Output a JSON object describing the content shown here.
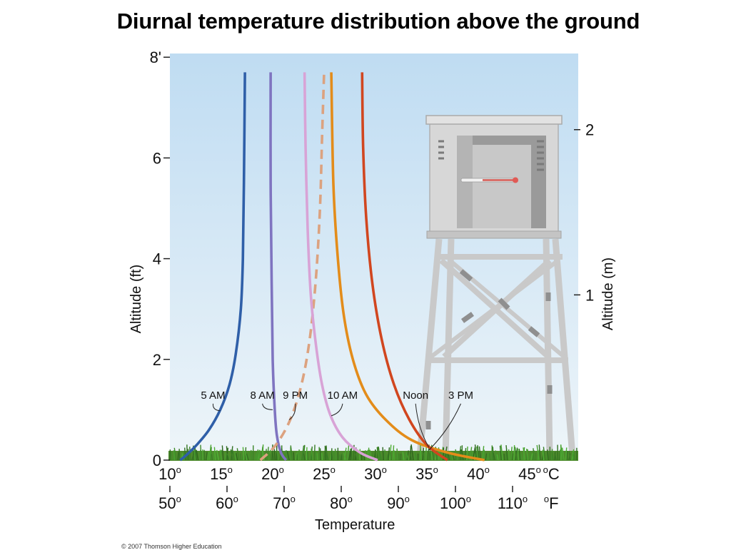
{
  "title": "Diurnal temperature distribution above the ground",
  "copyright": "© 2007 Thomson Higher Education",
  "colors": {
    "sky_top": "#bfdcf2",
    "sky_bottom": "#eef5f9",
    "grass": "#4e8a2c",
    "shelter": "#d2d2d2",
    "shelter_dark": "#8a8a8a"
  },
  "chart_data": {
    "type": "line",
    "title": "Diurnal temperature distribution above the ground",
    "xlabel": "Temperature",
    "ylabel_left": "Altitude (ft)",
    "ylabel_right": "Altitude (m)",
    "x_unit_c": "oC",
    "x_unit_f": "oF",
    "xlim_c": [
      10,
      48
    ],
    "ylim_ft": [
      0,
      8
    ],
    "celsius_ticks": [
      "10o",
      "15o",
      "20o",
      "25o",
      "30o",
      "35o",
      "40o",
      "45o"
    ],
    "celsius_tick_values": [
      10,
      15,
      20,
      25,
      30,
      35,
      40,
      45
    ],
    "fahrenheit_ticks": [
      "50o",
      "60o",
      "70o",
      "80o",
      "90o",
      "100o",
      "110o"
    ],
    "fahrenheit_tick_values": [
      50,
      60,
      70,
      80,
      90,
      100,
      110
    ],
    "left_ticks": [
      "0",
      "2",
      "4",
      "6",
      "8'"
    ],
    "left_tick_values": [
      0,
      2,
      4,
      6,
      8
    ],
    "right_ticks": [
      "1",
      "2"
    ],
    "right_tick_values_m": [
      1,
      2
    ],
    "grid": false,
    "series": [
      {
        "name": "5 AM",
        "color": "#2f5fa8",
        "dashed": false,
        "points": [
          [
            11.0,
            0
          ],
          [
            11.6,
            0.1
          ],
          [
            12.6,
            0.3
          ],
          [
            13.8,
            0.6
          ],
          [
            14.9,
            1.0
          ],
          [
            15.8,
            1.5
          ],
          [
            16.4,
            2.1
          ],
          [
            16.9,
            3.0
          ],
          [
            17.1,
            4.0
          ],
          [
            17.2,
            5.5
          ],
          [
            17.3,
            7.7
          ]
        ]
      },
      {
        "name": "8 AM",
        "color": "#7f74c0",
        "dashed": false,
        "points": [
          [
            21.3,
            0
          ],
          [
            20.8,
            0.15
          ],
          [
            20.4,
            0.5
          ],
          [
            20.2,
            1.0
          ],
          [
            20.0,
            2.0
          ],
          [
            19.9,
            3.5
          ],
          [
            19.8,
            5.5
          ],
          [
            19.8,
            7.7
          ]
        ]
      },
      {
        "name": "9 PM",
        "color": "#dca27f",
        "dashed": true,
        "points": [
          [
            18.8,
            0
          ],
          [
            20.3,
            0.3
          ],
          [
            21.7,
            0.8
          ],
          [
            22.8,
            1.5
          ],
          [
            23.6,
            2.4
          ],
          [
            24.2,
            3.6
          ],
          [
            24.6,
            5.0
          ],
          [
            24.8,
            6.4
          ],
          [
            25.0,
            7.7
          ]
        ]
      },
      {
        "name": "10 AM",
        "color": "#d8a3d6",
        "dashed": false,
        "points": [
          [
            30.2,
            0
          ],
          [
            28.5,
            0.15
          ],
          [
            26.8,
            0.45
          ],
          [
            25.6,
            0.9
          ],
          [
            24.8,
            1.5
          ],
          [
            24.2,
            2.3
          ],
          [
            23.7,
            3.3
          ],
          [
            23.4,
            4.6
          ],
          [
            23.2,
            6.2
          ],
          [
            23.1,
            7.7
          ]
        ]
      },
      {
        "name": "Noon",
        "color": "#e38c1a",
        "dashed": false,
        "points": [
          [
            40.6,
            0
          ],
          [
            37.0,
            0.15
          ],
          [
            33.5,
            0.4
          ],
          [
            31.0,
            0.8
          ],
          [
            29.1,
            1.3
          ],
          [
            27.8,
            2.0
          ],
          [
            26.9,
            2.9
          ],
          [
            26.3,
            4.1
          ],
          [
            25.9,
            5.5
          ],
          [
            25.7,
            7.7
          ]
        ]
      },
      {
        "name": "3 PM",
        "color": "#d1461f",
        "dashed": false,
        "points": [
          [
            37.0,
            0
          ],
          [
            35.0,
            0.3
          ],
          [
            33.3,
            0.8
          ],
          [
            31.8,
            1.5
          ],
          [
            30.6,
            2.4
          ],
          [
            29.7,
            3.5
          ],
          [
            29.1,
            4.8
          ],
          [
            28.8,
            6.2
          ],
          [
            28.7,
            7.7
          ]
        ]
      }
    ],
    "annotations": [
      {
        "text": "5 AM",
        "x": 14.2,
        "y": 1.22,
        "to": [
          14.9,
          0.98
        ]
      },
      {
        "text": "8 AM",
        "x": 19.0,
        "y": 1.22,
        "to": [
          20.0,
          1.0
        ]
      },
      {
        "text": "9 PM",
        "x": 22.2,
        "y": 1.22,
        "to": [
          21.6,
          0.8
        ]
      },
      {
        "text": "10 AM",
        "x": 26.8,
        "y": 1.22,
        "to": [
          25.7,
          0.88
        ]
      },
      {
        "text": "Noon",
        "x": 33.9,
        "y": 1.22,
        "to": [
          35.2,
          0.25
        ]
      },
      {
        "text": "3 PM",
        "x": 38.3,
        "y": 1.22,
        "to": [
          35.2,
          0.2
        ]
      }
    ]
  }
}
